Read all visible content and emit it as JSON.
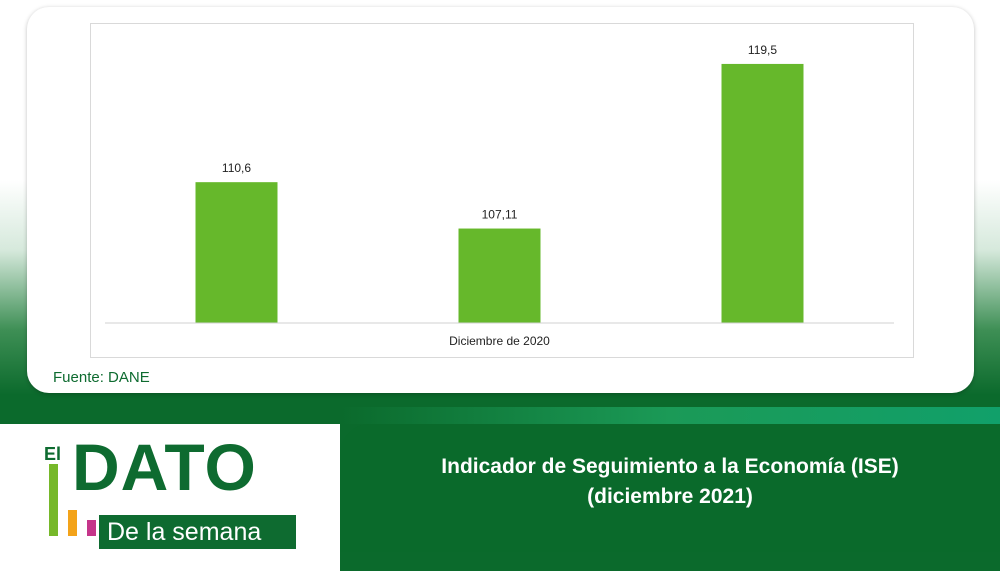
{
  "chart_data": {
    "type": "bar",
    "categories": [
      "",
      "",
      ""
    ],
    "values": [
      110.6,
      107.11,
      119.5
    ],
    "data_labels": [
      "110,6",
      "107,11",
      "119,5"
    ],
    "xlabel": "Diciembre de 2020",
    "ylim": [
      100,
      121
    ],
    "bar_color": "#66b82b",
    "grid": false
  },
  "source": "Fuente: DANE",
  "banner": {
    "line1": "Indicador de Seguimiento a la Economía (ISE)",
    "line2": "(diciembre 2021)"
  },
  "logo": {
    "el": "El",
    "dato": "DATO",
    "subtitle": "De la semana"
  },
  "colors": {
    "brand_green": "#0e6b30",
    "bar_green": "#66b82b"
  }
}
